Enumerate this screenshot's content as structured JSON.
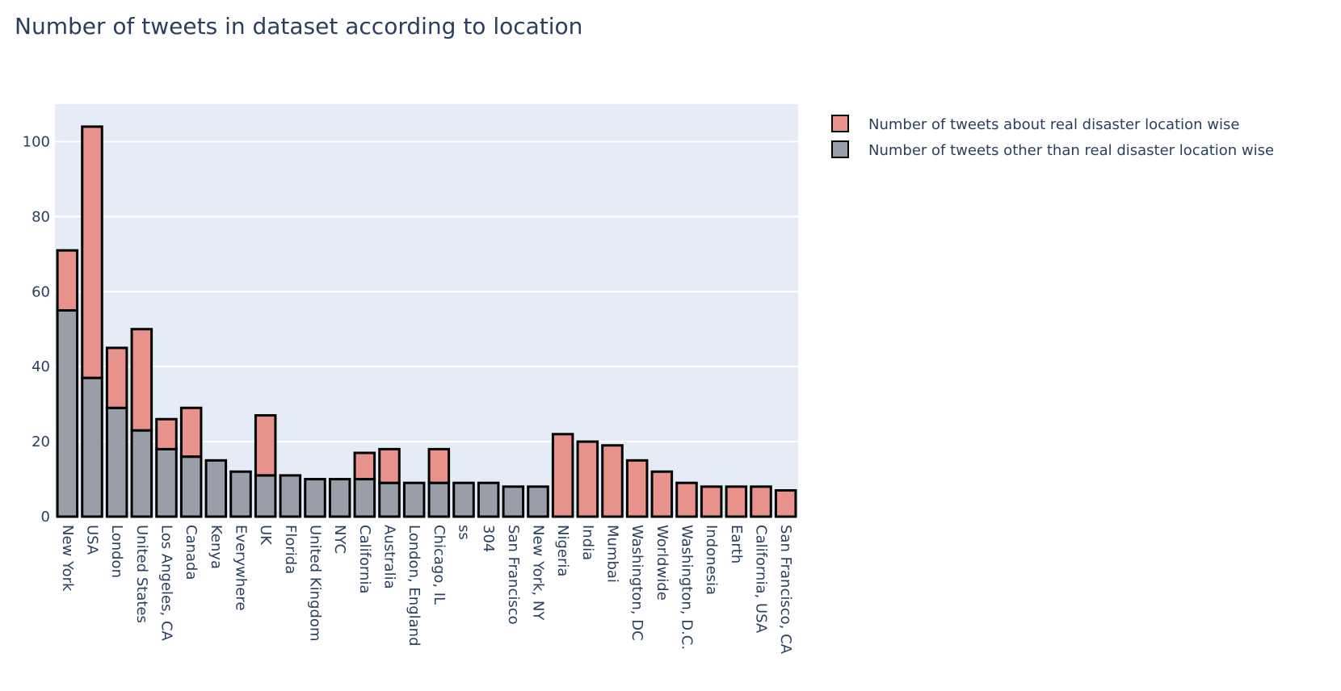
{
  "chart_data": {
    "type": "bar",
    "barmode": "stack",
    "title": "Number of tweets in dataset according to location",
    "xlabel": "",
    "ylabel": "",
    "ylim": [
      0,
      110
    ],
    "yticks": [
      0,
      20,
      40,
      60,
      80,
      100
    ],
    "grid": true,
    "legend_position": "top-right",
    "categories": [
      "New York",
      "USA",
      "London",
      "United States",
      "Los Angeles, CA",
      "Canada",
      "Kenya",
      "Everywhere",
      "UK",
      "Florida",
      "United Kingdom",
      "NYC",
      "California",
      "Australia",
      "London, England",
      "Chicago, IL",
      "ss",
      "304",
      "San Francisco",
      "New York, NY",
      "Nigeria",
      "India",
      "Mumbai",
      "Washington, DC",
      "Worldwide",
      "Washington, D.C.",
      "Indonesia",
      "Earth",
      "California, USA",
      "San Francisco, CA"
    ],
    "series": [
      {
        "name": "Number of tweets about real disaster location wise",
        "color": "#e8928c",
        "values": [
          16,
          67,
          16,
          27,
          8,
          13,
          0,
          0,
          16,
          0,
          0,
          0,
          7,
          9,
          0,
          9,
          0,
          0,
          0,
          0,
          22,
          20,
          19,
          15,
          12,
          9,
          8,
          8,
          8,
          7
        ]
      },
      {
        "name": "Number of tweets other than real disaster location wise",
        "color": "#9a9ea8",
        "values": [
          55,
          37,
          29,
          23,
          18,
          16,
          15,
          12,
          11,
          11,
          10,
          10,
          10,
          9,
          9,
          9,
          9,
          9,
          8,
          8,
          0,
          0,
          0,
          0,
          0,
          0,
          0,
          0,
          0,
          0
        ]
      }
    ]
  }
}
